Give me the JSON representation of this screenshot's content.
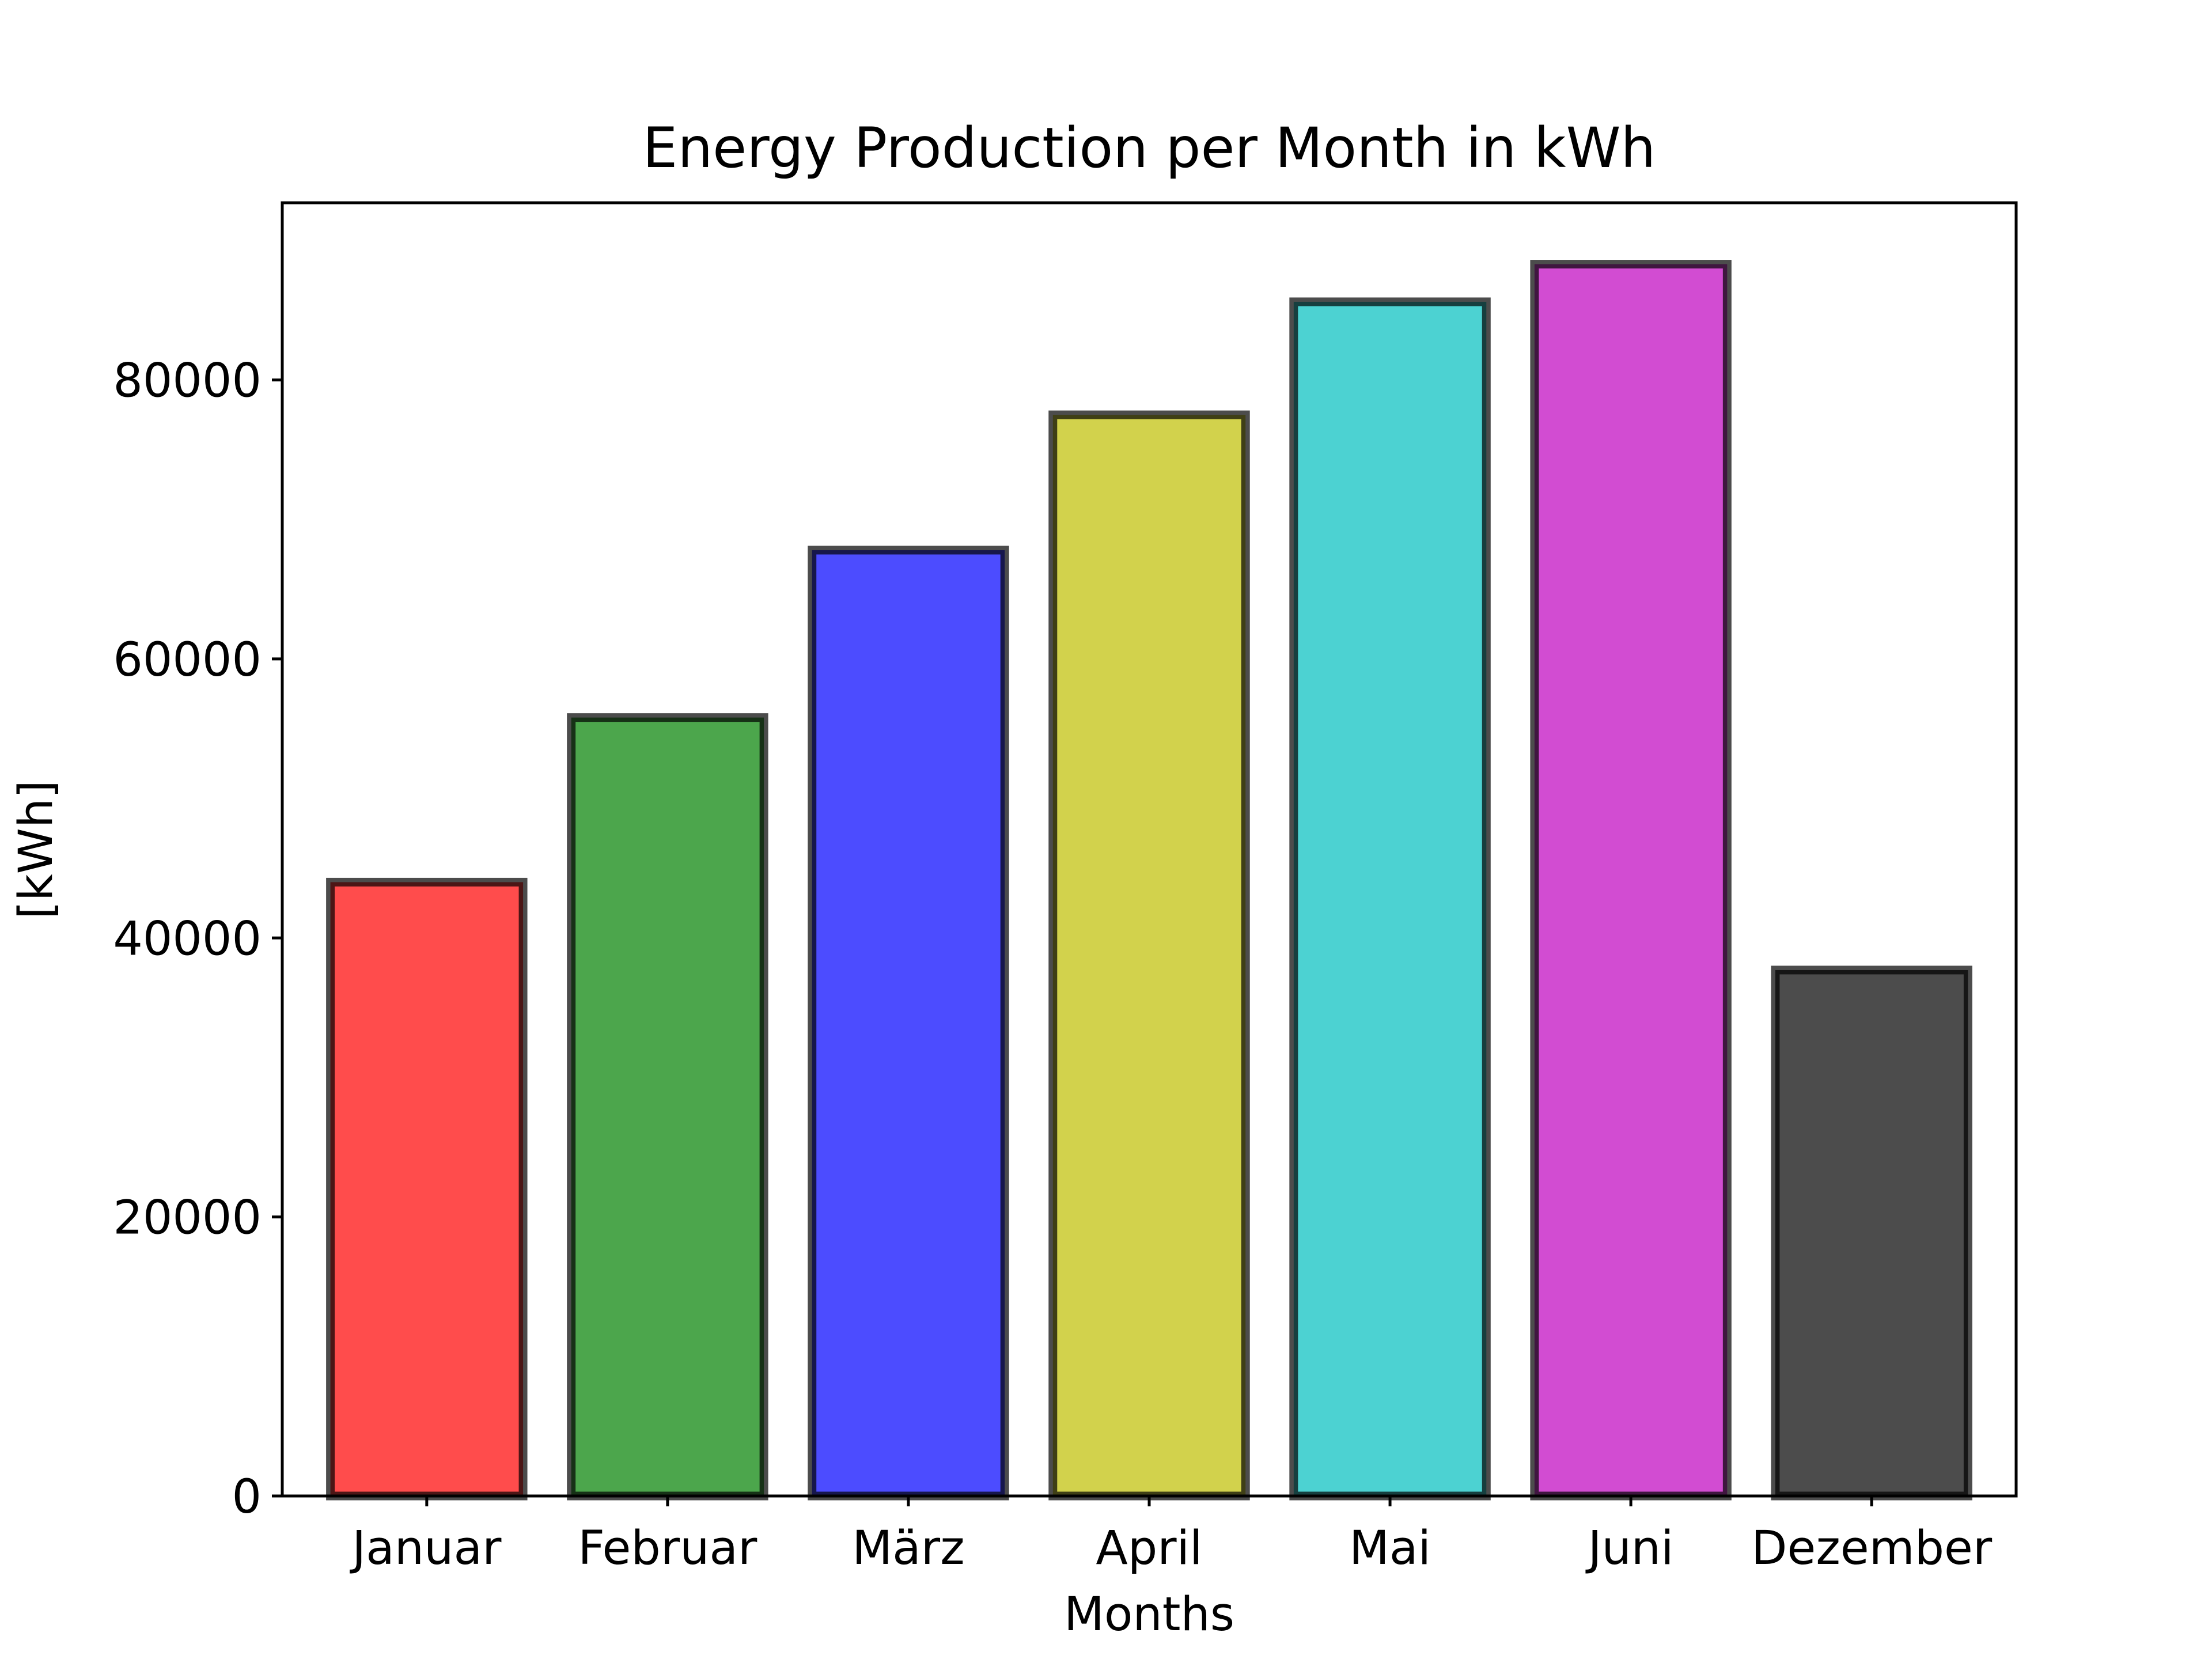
{
  "chart_data": {
    "type": "bar",
    "title": "Energy Production per Month in kWh",
    "xlabel": "Months",
    "ylabel": "[kWh]",
    "categories": [
      "Januar",
      "Februar",
      "März",
      "April",
      "Mai",
      "Juni",
      "Dezember"
    ],
    "values": [
      44000,
      55800,
      67800,
      77500,
      85600,
      88300,
      37700
    ],
    "colors": [
      "#ff0000",
      "#008000",
      "#0000ff",
      "#bfbf00",
      "#00bfbf",
      "#bf00bf",
      "#000000"
    ],
    "ylim": [
      0,
      92700
    ],
    "yticks": [
      0,
      20000,
      40000,
      60000,
      80000
    ],
    "grid": false,
    "legend": "none"
  }
}
